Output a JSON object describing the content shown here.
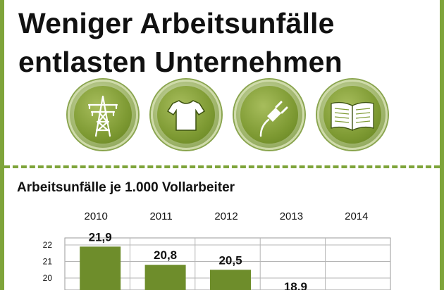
{
  "header": {
    "title_line1": "Weniger Arbeitsunfälle",
    "title_line2": "entlasten Unternehmen"
  },
  "icons": [
    "power-pylon-icon",
    "tshirt-icon",
    "power-plug-icon",
    "open-book-icon"
  ],
  "colors": {
    "accent": "#7ea43a",
    "bar": "#6e8d2b"
  },
  "chart_data": {
    "type": "bar",
    "title": "Arbeitsunfälle je 1.000 Vollarbeiter",
    "categories": [
      "2010",
      "2011",
      "2012",
      "2013",
      "2014"
    ],
    "values": [
      21.9,
      20.8,
      20.5,
      18.9,
      null
    ],
    "value_labels": [
      "21,9",
      "20,8",
      "20,5",
      "18,9",
      ""
    ],
    "yticks": [
      "22",
      "21",
      "20"
    ],
    "ylim": [
      18.5,
      22.4
    ],
    "grid": true
  }
}
